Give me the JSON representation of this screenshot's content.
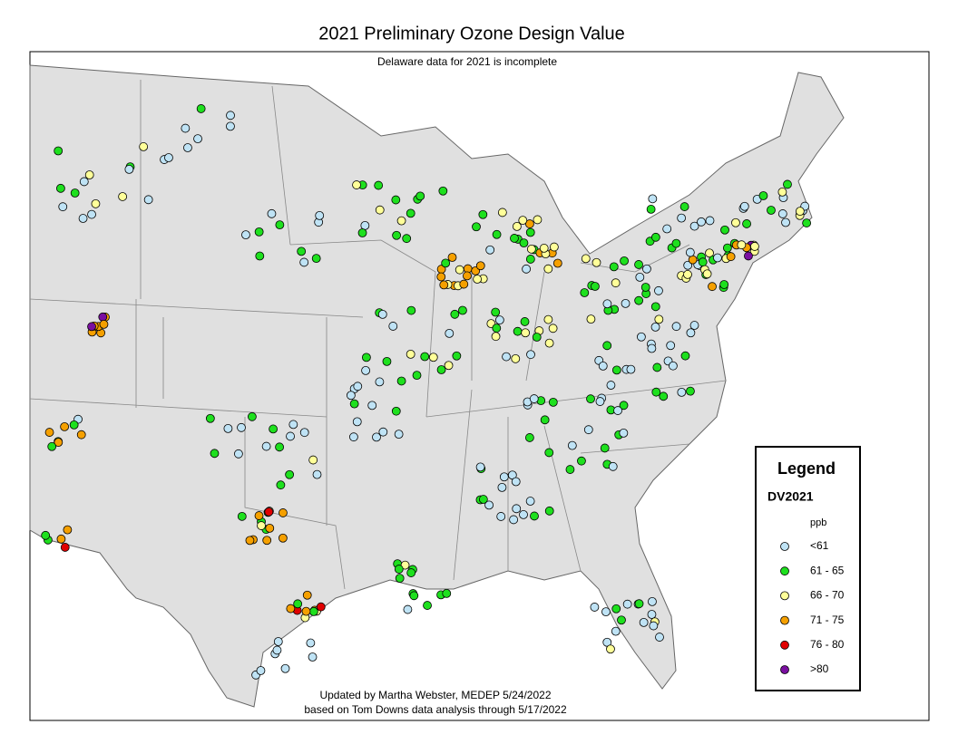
{
  "header": {
    "title": "2021 Preliminary Ozone Design Value",
    "note": "Delaware data for 2021 is incomplete"
  },
  "legend": {
    "title": "Legend",
    "subtitle": "DV2021",
    "unit": "ppb",
    "items": [
      {
        "label": "<61",
        "color": "#bfe3f5"
      },
      {
        "label": "61 - 65",
        "color": "#1ee01e"
      },
      {
        "label": "66 - 70",
        "color": "#ffff99"
      },
      {
        "label": "71 - 75",
        "color": "#f5a000"
      },
      {
        "label": "76 - 80",
        "color": "#e00000"
      },
      {
        "label": ">80",
        "color": "#7a0fa0"
      }
    ]
  },
  "footer": {
    "line1": "Updated by Martha Webster, MEDEP 5/24/2022",
    "line2": "based on Tom Downs data analysis through 5/17/2022"
  }
}
